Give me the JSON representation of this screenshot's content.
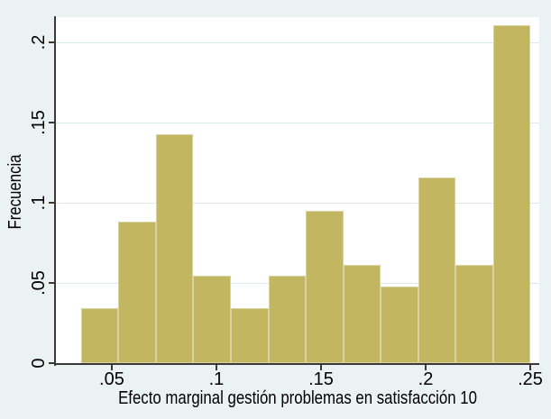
{
  "chart_data": {
    "type": "bar",
    "subtype": "histogram",
    "title": "",
    "xlabel": "Efecto marginal gestión problemas en satisfacción 10",
    "ylabel": "Frecuencia",
    "bin_start": 0.0353,
    "bin_width": 0.0179,
    "values": [
      0.034,
      0.0884,
      0.1429,
      0.0544,
      0.034,
      0.0544,
      0.0952,
      0.0612,
      0.0476,
      0.1156,
      0.0612,
      0.2109
    ],
    "x_tick_values": [
      0.05,
      0.1,
      0.15,
      0.2,
      0.25
    ],
    "x_tick_labels": [
      ".05",
      ".1",
      ".15",
      ".2",
      ".25"
    ],
    "y_tick_values": [
      0,
      0.05,
      0.1,
      0.15,
      0.2
    ],
    "y_tick_labels": [
      "0",
      ".05",
      ".1",
      ".15",
      ".2"
    ],
    "xlim": [
      0.0233,
      0.2543
    ],
    "ylim": [
      0,
      0.2157
    ],
    "grid": true,
    "legend": false,
    "colors": {
      "background": "#eaf2f3",
      "plot_background": "#ffffff",
      "bar_fill": "#c2b660",
      "bar_border": "#d8d2a2",
      "gridline": "#dbe9eb",
      "axis": "#3b3836",
      "text": "#000000"
    }
  }
}
